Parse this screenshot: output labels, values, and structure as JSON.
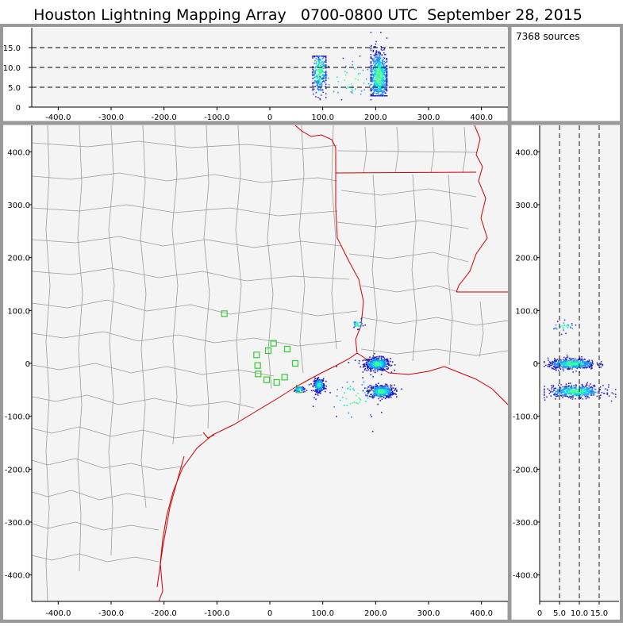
{
  "header": {
    "title": "Houston Lightning Mapping Array   0700-0800 UTC  September 28, 2015"
  },
  "info": {
    "source_count": "7368 sources"
  },
  "colors": {
    "background": "#f4f4f4",
    "border_gray": "#999999",
    "county_lines": "#9a9a9a",
    "state_lines": "#d00000",
    "station_markers": "#33cc33",
    "density_low": "#2020c0",
    "density_mid": "#2090ff",
    "density_high": "#00e0e0",
    "density_peak": "#40ff90"
  },
  "chart_data": [
    {
      "type": "scatter",
      "panel": "altitude-vs-east-west",
      "xlabel": "",
      "ylabel": "",
      "xlim": [
        -450,
        450
      ],
      "ylim": [
        0,
        20
      ],
      "x_ticks": [
        "-400.0",
        "-300.0",
        "-200.0",
        "-100.0",
        "0",
        "100.0",
        "200.0",
        "300.0",
        "400.0"
      ],
      "y_ticks": [
        "0",
        "5.0",
        "10.0",
        "15.0"
      ],
      "dashed_reference_lines": [
        5,
        10,
        15
      ],
      "clusters": [
        {
          "x_center": 93,
          "x_spread": 8,
          "z_center": 9,
          "z_spread": 3,
          "count": 300,
          "x_range": [
            80,
            105
          ],
          "z_range": [
            1,
            13
          ]
        },
        {
          "x_center": 205,
          "x_spread": 10,
          "z_center": 8,
          "z_spread": 3.5,
          "count": 700,
          "x_range": [
            190,
            220
          ],
          "z_range": [
            3,
            19
          ]
        },
        {
          "x_center": 150,
          "x_spread": 30,
          "z_center": 7,
          "z_spread": 3,
          "count": 60,
          "x_range": [
            60,
            190
          ],
          "z_range": [
            2,
            13
          ]
        }
      ]
    },
    {
      "type": "map",
      "panel": "plan-view",
      "xlabel": "",
      "ylabel": "",
      "xlim": [
        -450,
        450
      ],
      "ylim": [
        -450,
        450
      ],
      "x_ticks": [
        "-400.0",
        "-300.0",
        "-200.0",
        "-100.0",
        "0",
        "100.0",
        "200.0",
        "300.0",
        "400.0"
      ],
      "y_ticks": [
        "400.0",
        "300.0",
        "200.0",
        "100.0",
        "0",
        "-100.0",
        "-200.0",
        "-300.0",
        "-400.0"
      ],
      "stations": [
        [
          -86,
          94
        ],
        [
          -25,
          16
        ],
        [
          -3,
          24
        ],
        [
          7,
          38
        ],
        [
          33,
          27
        ],
        [
          48,
          0
        ],
        [
          -23,
          -4
        ],
        [
          -22,
          -20
        ],
        [
          -6,
          -31
        ],
        [
          13,
          -36
        ],
        [
          28,
          -26
        ],
        [
          55,
          -50
        ]
      ],
      "clusters": [
        {
          "x_center": 202,
          "y_center": 0,
          "x_spread": 12,
          "y_spread": 6,
          "count": 500
        },
        {
          "x_center": 210,
          "y_center": -52,
          "x_spread": 12,
          "y_spread": 6,
          "count": 420
        },
        {
          "x_center": 92,
          "y_center": -40,
          "x_spread": 5,
          "y_spread": 6,
          "count": 250
        },
        {
          "x_center": 55,
          "y_center": -48,
          "x_spread": 5,
          "y_spread": 3,
          "count": 50
        },
        {
          "x_center": 165,
          "y_center": 75,
          "x_spread": 6,
          "y_spread": 4,
          "count": 30
        },
        {
          "x_center": 160,
          "y_center": -65,
          "x_spread": 30,
          "y_spread": 25,
          "count": 60
        }
      ]
    },
    {
      "type": "scatter",
      "panel": "north-south-vs-altitude",
      "xlabel": "",
      "ylabel": "",
      "xlim": [
        0,
        20
      ],
      "ylim": [
        -450,
        450
      ],
      "x_ticks": [
        "0",
        "5.0",
        "10.0",
        "15.0"
      ],
      "y_ticks": [
        "400.0",
        "300.0",
        "200.0",
        "100.0",
        "0",
        "-100.0",
        "-200.0",
        "-300.0",
        "-400.0"
      ],
      "dashed_reference_lines": [
        5,
        10,
        15
      ],
      "clusters": [
        {
          "z_center": 8,
          "z_spread": 3,
          "y_center": 0,
          "y_spread": 5,
          "count": 500,
          "z_range": [
            1,
            19
          ]
        },
        {
          "z_center": 9,
          "z_spread": 3.5,
          "y_center": -52,
          "y_spread": 6,
          "count": 500,
          "z_range": [
            1,
            19
          ]
        },
        {
          "z_center": 6,
          "z_spread": 1.5,
          "y_center": 70,
          "y_spread": 5,
          "count": 30,
          "z_range": [
            3,
            12
          ]
        }
      ]
    }
  ]
}
